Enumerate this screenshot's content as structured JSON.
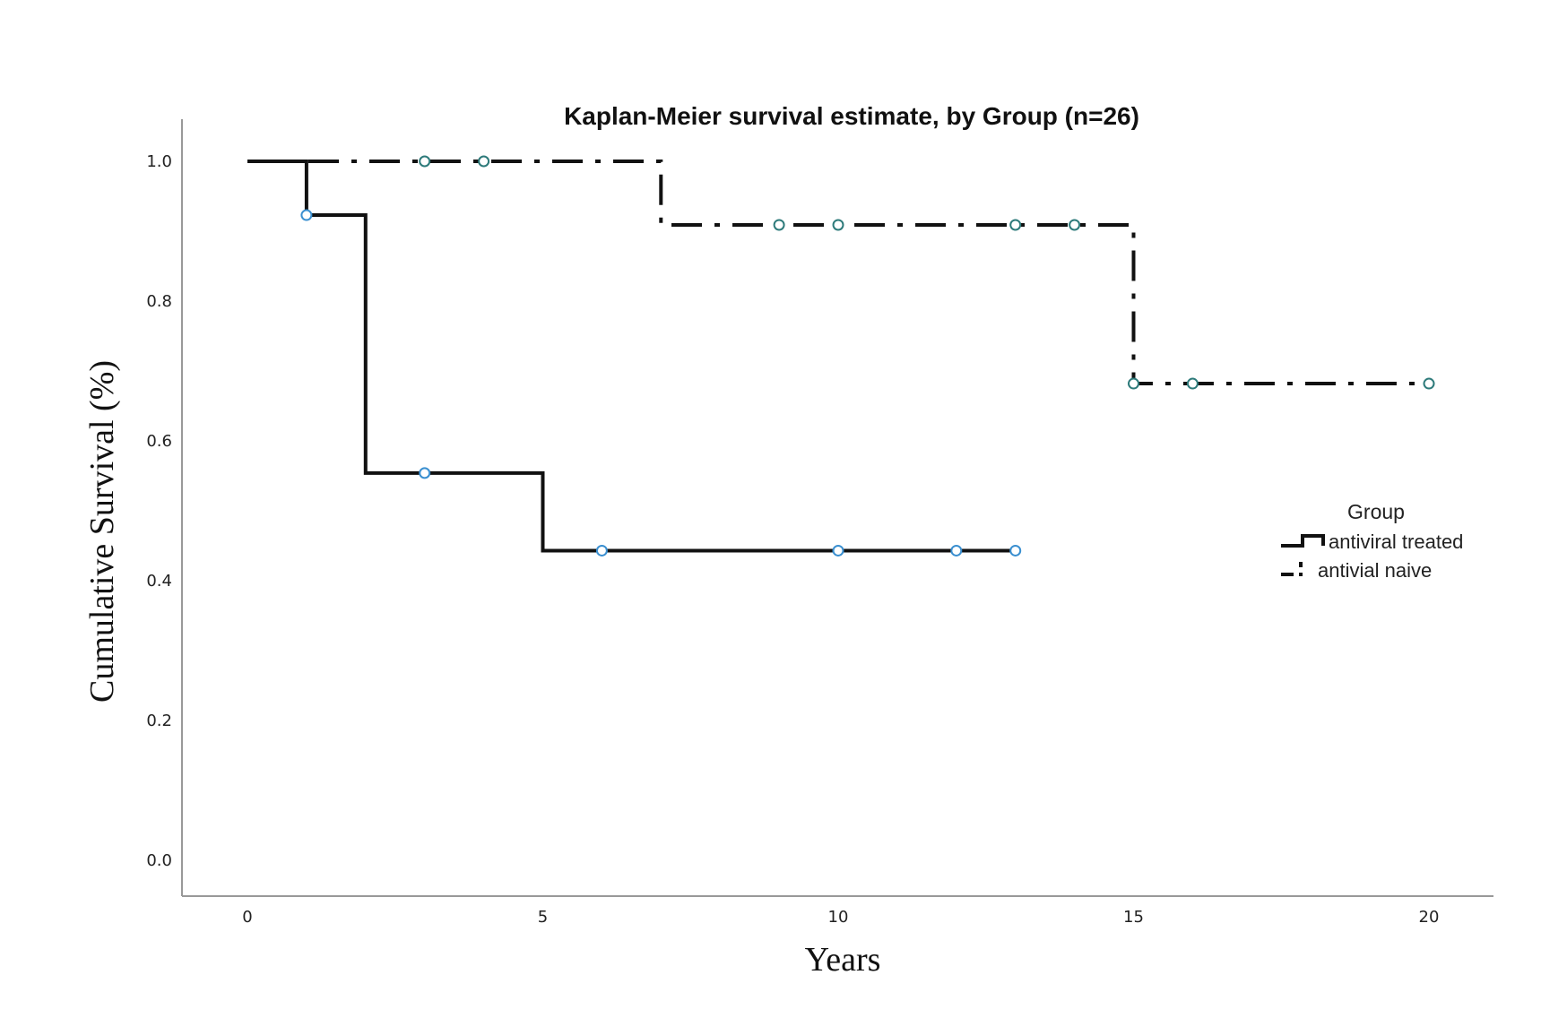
{
  "chart_data": {
    "type": "line",
    "subtype": "kaplan-meier step",
    "title": "Kaplan-Meier survival estimate, by Group (n=26)",
    "xlabel": "Years",
    "ylabel": "Cumulative Survival (%)",
    "xlim": [
      0,
      20
    ],
    "ylim": [
      0,
      1.0
    ],
    "xticks": [
      "0",
      "5",
      "10",
      "15",
      "20"
    ],
    "yticks": [
      "0.0",
      "0.2",
      "0.4",
      "0.6",
      "0.8",
      "1.0"
    ],
    "grid": false,
    "legend": {
      "title": "Group",
      "placement": "right",
      "entries": [
        "antiviral treated",
        "antivial naive"
      ]
    },
    "series": [
      {
        "name": "antiviral treated",
        "style": "solid",
        "color": "#111111",
        "steps": [
          [
            0,
            1.0
          ],
          [
            1,
            0.923
          ],
          [
            2,
            0.554
          ],
          [
            5,
            0.443
          ]
        ],
        "end_x": 13,
        "censored": [
          [
            1,
            0.923
          ],
          [
            3,
            0.554
          ],
          [
            6,
            0.443
          ],
          [
            10,
            0.443
          ],
          [
            12,
            0.443
          ],
          [
            13,
            0.443
          ]
        ]
      },
      {
        "name": "antivial naive",
        "style": "dash-dot",
        "color": "#111111",
        "steps": [
          [
            0,
            1.0
          ],
          [
            7,
            0.909
          ],
          [
            15,
            0.682
          ]
        ],
        "end_x": 20,
        "censored": [
          [
            3,
            1.0
          ],
          [
            4,
            1.0
          ],
          [
            9,
            0.909
          ],
          [
            10,
            0.909
          ],
          [
            13,
            0.909
          ],
          [
            14,
            0.909
          ],
          [
            15,
            0.682
          ],
          [
            16,
            0.682
          ],
          [
            20,
            0.682
          ]
        ]
      }
    ],
    "marker_colors": {
      "antiviral treated": "#3a8fd0",
      "antivial naive": "#2d7a7a"
    }
  }
}
